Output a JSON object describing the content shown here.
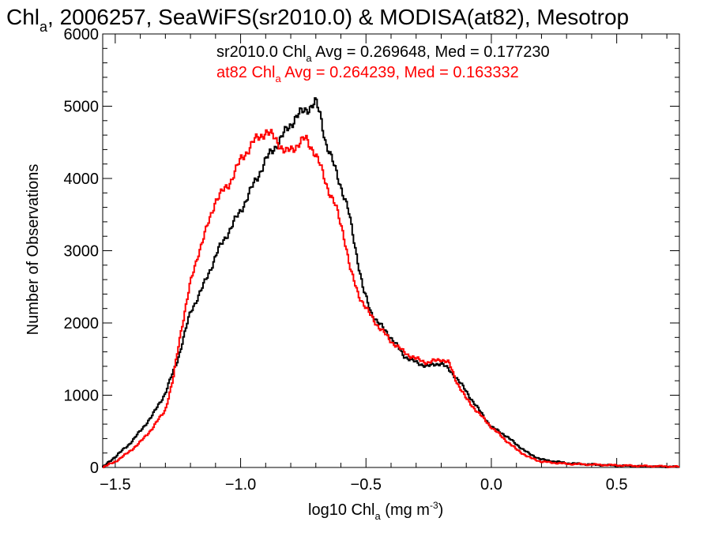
{
  "chart_data": {
    "type": "line",
    "title": {
      "pre": "Chl",
      "sub": "a",
      "post": ", 2006257, SeaWiFS(sr2010.0) & MODISA(at82), Mesotrop"
    },
    "xlabel": {
      "pre": "log10 Chl",
      "sub": "a",
      "mid": " (mg m",
      "sup": "-3",
      "post": ")"
    },
    "ylabel": "Number of Observations",
    "xlim": [
      -1.55,
      0.75
    ],
    "ylim": [
      0,
      6000
    ],
    "x_ticks": [
      {
        "value": -1.5,
        "label": "−1.5"
      },
      {
        "value": -1.0,
        "label": "−1.0"
      },
      {
        "value": -0.5,
        "label": "−0.5"
      },
      {
        "value": 0.0,
        "label": "0.0"
      },
      {
        "value": 0.5,
        "label": "0.5"
      }
    ],
    "y_ticks": [
      {
        "value": 0,
        "label": "0"
      },
      {
        "value": 1000,
        "label": "1000"
      },
      {
        "value": 2000,
        "label": "2000"
      },
      {
        "value": 3000,
        "label": "3000"
      },
      {
        "value": 4000,
        "label": "4000"
      },
      {
        "value": 5000,
        "label": "5000"
      },
      {
        "value": 6000,
        "label": "6000"
      }
    ],
    "series": [
      {
        "name": "sr2010.0",
        "color": "#000000",
        "stat_pre": "sr2010.0 Chl",
        "stat_sub": "a",
        "stat_post": " Avg = 0.269648, Med = 0.177230",
        "points": [
          [
            -1.55,
            0
          ],
          [
            -1.5,
            150
          ],
          [
            -1.45,
            300
          ],
          [
            -1.4,
            500
          ],
          [
            -1.35,
            730
          ],
          [
            -1.3,
            1030
          ],
          [
            -1.25,
            1500
          ],
          [
            -1.2,
            2150
          ],
          [
            -1.15,
            2500
          ],
          [
            -1.12,
            2750
          ],
          [
            -1.09,
            3000
          ],
          [
            -1.05,
            3250
          ],
          [
            -1.0,
            3550
          ],
          [
            -0.95,
            3900
          ],
          [
            -0.9,
            4250
          ],
          [
            -0.86,
            4450
          ],
          [
            -0.82,
            4650
          ],
          [
            -0.78,
            4850
          ],
          [
            -0.74,
            4950
          ],
          [
            -0.7,
            5050
          ],
          [
            -0.68,
            4850
          ],
          [
            -0.66,
            4500
          ],
          [
            -0.63,
            4200
          ],
          [
            -0.6,
            3900
          ],
          [
            -0.57,
            3550
          ],
          [
            -0.54,
            3000
          ],
          [
            -0.51,
            2450
          ],
          [
            -0.48,
            2150
          ],
          [
            -0.45,
            2000
          ],
          [
            -0.4,
            1800
          ],
          [
            -0.35,
            1550
          ],
          [
            -0.3,
            1450
          ],
          [
            -0.25,
            1400
          ],
          [
            -0.2,
            1450
          ],
          [
            -0.17,
            1350
          ],
          [
            -0.14,
            1250
          ],
          [
            -0.1,
            1050
          ],
          [
            -0.05,
            800
          ],
          [
            0.0,
            560
          ],
          [
            0.05,
            460
          ],
          [
            0.1,
            320
          ],
          [
            0.15,
            190
          ],
          [
            0.2,
            110
          ],
          [
            0.3,
            60
          ],
          [
            0.4,
            40
          ],
          [
            0.5,
            25
          ],
          [
            0.6,
            15
          ],
          [
            0.7,
            10
          ],
          [
            0.75,
            8
          ]
        ]
      },
      {
        "name": "at82",
        "color": "#ff0000",
        "stat_pre": "at82 Chl",
        "stat_sub": "a",
        "stat_post": " Avg = 0.264239, Med = 0.163332",
        "points": [
          [
            -1.55,
            0
          ],
          [
            -1.5,
            80
          ],
          [
            -1.45,
            200
          ],
          [
            -1.4,
            350
          ],
          [
            -1.35,
            550
          ],
          [
            -1.3,
            800
          ],
          [
            -1.27,
            1200
          ],
          [
            -1.24,
            1850
          ],
          [
            -1.2,
            2550
          ],
          [
            -1.17,
            2950
          ],
          [
            -1.14,
            3250
          ],
          [
            -1.1,
            3700
          ],
          [
            -1.05,
            3900
          ],
          [
            -1.0,
            4250
          ],
          [
            -0.95,
            4500
          ],
          [
            -0.9,
            4650
          ],
          [
            -0.86,
            4550
          ],
          [
            -0.82,
            4350
          ],
          [
            -0.78,
            4450
          ],
          [
            -0.74,
            4550
          ],
          [
            -0.71,
            4400
          ],
          [
            -0.68,
            4150
          ],
          [
            -0.65,
            3850
          ],
          [
            -0.62,
            3600
          ],
          [
            -0.59,
            3250
          ],
          [
            -0.56,
            2700
          ],
          [
            -0.53,
            2400
          ],
          [
            -0.5,
            2200
          ],
          [
            -0.45,
            1950
          ],
          [
            -0.4,
            1750
          ],
          [
            -0.35,
            1600
          ],
          [
            -0.3,
            1500
          ],
          [
            -0.25,
            1450
          ],
          [
            -0.2,
            1500
          ],
          [
            -0.17,
            1450
          ],
          [
            -0.14,
            1200
          ],
          [
            -0.1,
            950
          ],
          [
            -0.05,
            750
          ],
          [
            0.0,
            560
          ],
          [
            0.05,
            400
          ],
          [
            0.1,
            250
          ],
          [
            0.15,
            140
          ],
          [
            0.2,
            80
          ],
          [
            0.3,
            50
          ],
          [
            0.4,
            40
          ],
          [
            0.5,
            30
          ],
          [
            0.6,
            20
          ],
          [
            0.7,
            15
          ],
          [
            0.75,
            10
          ]
        ]
      }
    ]
  }
}
